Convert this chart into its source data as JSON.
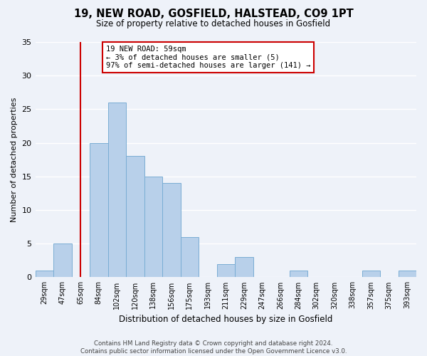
{
  "title": "19, NEW ROAD, GOSFIELD, HALSTEAD, CO9 1PT",
  "subtitle": "Size of property relative to detached houses in Gosfield",
  "xlabel": "Distribution of detached houses by size in Gosfield",
  "ylabel": "Number of detached properties",
  "bin_labels": [
    "29sqm",
    "47sqm",
    "65sqm",
    "84sqm",
    "102sqm",
    "120sqm",
    "138sqm",
    "156sqm",
    "175sqm",
    "193sqm",
    "211sqm",
    "229sqm",
    "247sqm",
    "266sqm",
    "284sqm",
    "302sqm",
    "320sqm",
    "338sqm",
    "357sqm",
    "375sqm",
    "393sqm"
  ],
  "bar_values": [
    1,
    5,
    0,
    20,
    26,
    18,
    15,
    14,
    6,
    0,
    2,
    3,
    0,
    0,
    1,
    0,
    0,
    0,
    1,
    0,
    1
  ],
  "bar_color": "#b8d0ea",
  "bar_edge_color": "#7aadd4",
  "vline_x_index": 2,
  "vline_color": "#cc0000",
  "annotation_text": "19 NEW ROAD: 59sqm\n← 3% of detached houses are smaller (5)\n97% of semi-detached houses are larger (141) →",
  "annotation_box_color": "#ffffff",
  "annotation_box_edge_color": "#cc0000",
  "ylim": [
    0,
    35
  ],
  "yticks": [
    0,
    5,
    10,
    15,
    20,
    25,
    30,
    35
  ],
  "footer_line1": "Contains HM Land Registry data © Crown copyright and database right 2024.",
  "footer_line2": "Contains public sector information licensed under the Open Government Licence v3.0.",
  "bg_color": "#eef2f9",
  "plot_bg_color": "#eef2f9",
  "grid_color": "#ffffff"
}
